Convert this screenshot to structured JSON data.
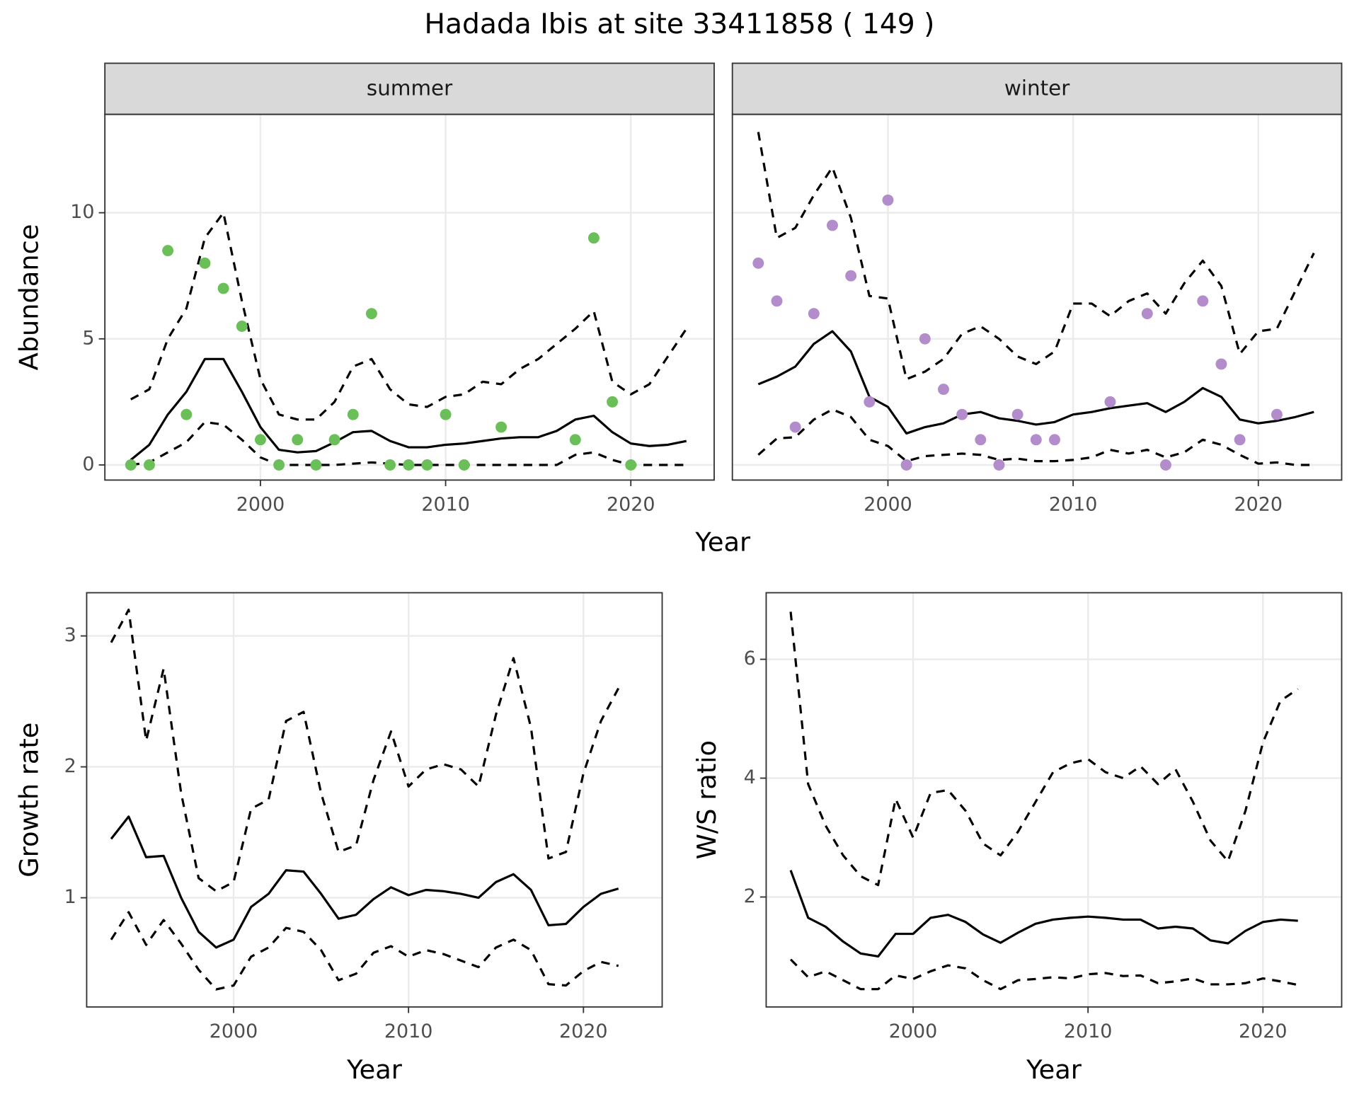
{
  "title": "Hadada Ibis at site 33411858 ( 149 )",
  "chart_data": [
    {
      "type": "line",
      "xlabel": "Year",
      "ylabel": "Abundance",
      "xlim": [
        1991.6,
        2024.5
      ],
      "ylim": [
        -0.6,
        13.9
      ],
      "xticks": [
        2000,
        2010,
        2020
      ],
      "yticks": [
        0,
        5,
        10
      ],
      "grid": true,
      "facets": [
        {
          "title": "summer",
          "x": [
            1993,
            1994,
            1995,
            1996,
            1997,
            1998,
            1999,
            2000,
            2001,
            2002,
            2003,
            2004,
            2005,
            2006,
            2007,
            2008,
            2009,
            2010,
            2011,
            2012,
            2013,
            2014,
            2015,
            2016,
            2017,
            2018,
            2019,
            2020,
            2021,
            2022,
            2023
          ],
          "points": {
            "color": "#6abf59",
            "x": [
              1993,
              1994,
              1995,
              1996,
              1997,
              1998,
              1999,
              2000,
              2001,
              2002,
              2003,
              2004,
              2005,
              2006,
              2007,
              2008,
              2009,
              2010,
              2011,
              2013,
              2017,
              2018,
              2019,
              2020
            ],
            "values": [
              0,
              0,
              8.5,
              2,
              8,
              7,
              5.5,
              1,
              0,
              1,
              0,
              1,
              2,
              6,
              0,
              0,
              0,
              2,
              0,
              1.5,
              1,
              9,
              2.5,
              0
            ]
          },
          "series": [
            {
              "color": "#000000",
              "dashed": false,
              "values": [
                0.2,
                0.8,
                2.0,
                2.9,
                4.2,
                4.2,
                2.9,
                1.5,
                0.6,
                0.5,
                0.55,
                0.9,
                1.3,
                1.35,
                0.95,
                0.7,
                0.7,
                0.8,
                0.85,
                0.95,
                1.05,
                1.1,
                1.1,
                1.35,
                1.8,
                1.95,
                1.3,
                0.85,
                0.75,
                0.8,
                0.95
              ]
            },
            {
              "color": "#000000",
              "dashed": true,
              "values": [
                2.6,
                3.0,
                5.0,
                6.2,
                9.0,
                10.0,
                6.5,
                3.4,
                2.0,
                1.8,
                1.8,
                2.5,
                3.9,
                4.2,
                3.0,
                2.4,
                2.3,
                2.7,
                2.8,
                3.3,
                3.2,
                3.8,
                4.2,
                4.8,
                5.4,
                6.1,
                3.3,
                2.8,
                3.2,
                4.3,
                5.4
              ]
            },
            {
              "color": "#000000",
              "dashed": true,
              "values": [
                0,
                0.1,
                0.5,
                0.9,
                1.7,
                1.6,
                1.0,
                0.3,
                0,
                0,
                0,
                0,
                0.05,
                0.1,
                0.05,
                0,
                0,
                0,
                0,
                0,
                0,
                0,
                0,
                0,
                0.4,
                0.5,
                0.2,
                0,
                0,
                0,
                0
              ]
            }
          ]
        },
        {
          "title": "winter",
          "x": [
            1993,
            1994,
            1995,
            1996,
            1997,
            1998,
            1999,
            2000,
            2001,
            2002,
            2003,
            2004,
            2005,
            2006,
            2007,
            2008,
            2009,
            2010,
            2011,
            2012,
            2013,
            2014,
            2015,
            2016,
            2017,
            2018,
            2019,
            2020,
            2021,
            2022,
            2023
          ],
          "points": {
            "color": "#b28ccb",
            "x": [
              1993,
              1994,
              1995,
              1996,
              1997,
              1998,
              1999,
              2000,
              2001,
              2002,
              2003,
              2004,
              2005,
              2006,
              2007,
              2008,
              2009,
              2012,
              2014,
              2015,
              2017,
              2018,
              2019,
              2021
            ],
            "values": [
              8,
              6.5,
              1.5,
              6,
              9.5,
              7.5,
              2.5,
              10.5,
              0,
              5,
              3,
              2,
              1,
              0,
              2,
              1,
              1,
              2.5,
              6,
              0,
              6.5,
              4,
              1,
              2
            ]
          },
          "series": [
            {
              "color": "#000000",
              "dashed": false,
              "values": [
                3.2,
                3.5,
                3.9,
                4.8,
                5.3,
                4.5,
                2.7,
                2.3,
                1.25,
                1.5,
                1.65,
                2.0,
                2.1,
                1.85,
                1.75,
                1.6,
                1.7,
                2.0,
                2.1,
                2.25,
                2.35,
                2.45,
                2.1,
                2.5,
                3.05,
                2.7,
                1.8,
                1.65,
                1.75,
                1.9,
                2.1
              ]
            },
            {
              "color": "#000000",
              "dashed": true,
              "values": [
                13.2,
                9.0,
                9.4,
                10.7,
                11.8,
                9.8,
                6.7,
                6.6,
                3.4,
                3.7,
                4.2,
                5.2,
                5.5,
                5.0,
                4.3,
                4.0,
                4.5,
                6.4,
                6.4,
                5.9,
                6.5,
                6.8,
                6.0,
                7.2,
                8.1,
                7.1,
                4.4,
                5.3,
                5.4,
                6.9,
                8.4
              ]
            },
            {
              "color": "#000000",
              "dashed": true,
              "values": [
                0.4,
                1.05,
                1.1,
                1.8,
                2.2,
                1.9,
                1.0,
                0.75,
                0.15,
                0.35,
                0.4,
                0.45,
                0.4,
                0.2,
                0.25,
                0.15,
                0.15,
                0.2,
                0.3,
                0.6,
                0.45,
                0.6,
                0.3,
                0.5,
                1.0,
                0.8,
                0.4,
                0.05,
                0.1,
                0,
                0
              ]
            }
          ]
        }
      ]
    },
    {
      "type": "line",
      "xlabel": "Year",
      "ylabel": "Growth rate",
      "xlim": [
        1991.6,
        2024.5
      ],
      "ylim": [
        0.166,
        3.33
      ],
      "xticks": [
        2000,
        2010,
        2020
      ],
      "yticks": [
        1,
        2,
        3
      ],
      "grid": true,
      "x": [
        1993,
        1994,
        1995,
        1996,
        1997,
        1998,
        1999,
        2000,
        2001,
        2002,
        2003,
        2004,
        2005,
        2006,
        2007,
        2008,
        2009,
        2010,
        2011,
        2012,
        2013,
        2014,
        2015,
        2016,
        2017,
        2018,
        2019,
        2020,
        2021,
        2022
      ],
      "series": [
        {
          "color": "#000000",
          "dashed": false,
          "values": [
            1.45,
            1.62,
            1.31,
            1.32,
            1.0,
            0.74,
            0.62,
            0.68,
            0.93,
            1.03,
            1.21,
            1.2,
            1.03,
            0.84,
            0.87,
            0.99,
            1.08,
            1.02,
            1.06,
            1.05,
            1.03,
            1.0,
            1.12,
            1.18,
            1.06,
            0.79,
            0.8,
            0.93,
            1.03,
            1.07
          ]
        },
        {
          "color": "#000000",
          "dashed": true,
          "values": [
            2.95,
            3.2,
            2.2,
            2.75,
            1.8,
            1.15,
            1.05,
            1.12,
            1.68,
            1.75,
            2.35,
            2.42,
            1.8,
            1.35,
            1.4,
            1.9,
            2.27,
            1.85,
            1.98,
            2.02,
            1.98,
            1.85,
            2.4,
            2.83,
            2.3,
            1.3,
            1.35,
            1.95,
            2.35,
            2.6
          ]
        },
        {
          "color": "#000000",
          "dashed": true,
          "values": [
            0.68,
            0.89,
            0.64,
            0.83,
            0.65,
            0.45,
            0.3,
            0.33,
            0.55,
            0.62,
            0.77,
            0.74,
            0.6,
            0.37,
            0.42,
            0.58,
            0.63,
            0.55,
            0.6,
            0.57,
            0.52,
            0.47,
            0.62,
            0.68,
            0.6,
            0.34,
            0.33,
            0.44,
            0.51,
            0.48
          ]
        }
      ]
    },
    {
      "type": "line",
      "xlabel": "Year",
      "ylabel": "W/S ratio",
      "xlim": [
        1991.6,
        2024.5
      ],
      "ylim": [
        0.15,
        7.12
      ],
      "xticks": [
        2000,
        2010,
        2020
      ],
      "yticks": [
        2,
        4,
        6
      ],
      "grid": true,
      "x": [
        1993,
        1994,
        1995,
        1996,
        1997,
        1998,
        1999,
        2000,
        2001,
        2002,
        2003,
        2004,
        2005,
        2006,
        2007,
        2008,
        2009,
        2010,
        2011,
        2012,
        2013,
        2014,
        2015,
        2016,
        2017,
        2018,
        2019,
        2020,
        2021,
        2022
      ],
      "series": [
        {
          "color": "#000000",
          "dashed": false,
          "values": [
            2.45,
            1.65,
            1.5,
            1.25,
            1.05,
            1.0,
            1.38,
            1.38,
            1.65,
            1.7,
            1.58,
            1.37,
            1.23,
            1.4,
            1.55,
            1.62,
            1.65,
            1.67,
            1.65,
            1.62,
            1.62,
            1.47,
            1.5,
            1.47,
            1.27,
            1.22,
            1.43,
            1.58,
            1.62,
            1.6
          ]
        },
        {
          "color": "#000000",
          "dashed": true,
          "values": [
            6.8,
            3.9,
            3.2,
            2.7,
            2.35,
            2.2,
            3.65,
            3.0,
            3.75,
            3.8,
            3.45,
            2.9,
            2.7,
            3.1,
            3.6,
            4.1,
            4.25,
            4.32,
            4.1,
            4.0,
            4.2,
            3.9,
            4.15,
            3.6,
            2.95,
            2.6,
            3.45,
            4.6,
            5.3,
            5.5
          ]
        },
        {
          "color": "#000000",
          "dashed": true,
          "values": [
            0.95,
            0.65,
            0.75,
            0.6,
            0.45,
            0.45,
            0.68,
            0.62,
            0.75,
            0.85,
            0.8,
            0.6,
            0.45,
            0.6,
            0.62,
            0.65,
            0.63,
            0.7,
            0.72,
            0.67,
            0.68,
            0.55,
            0.58,
            0.63,
            0.53,
            0.53,
            0.55,
            0.63,
            0.58,
            0.52
          ]
        }
      ]
    }
  ]
}
